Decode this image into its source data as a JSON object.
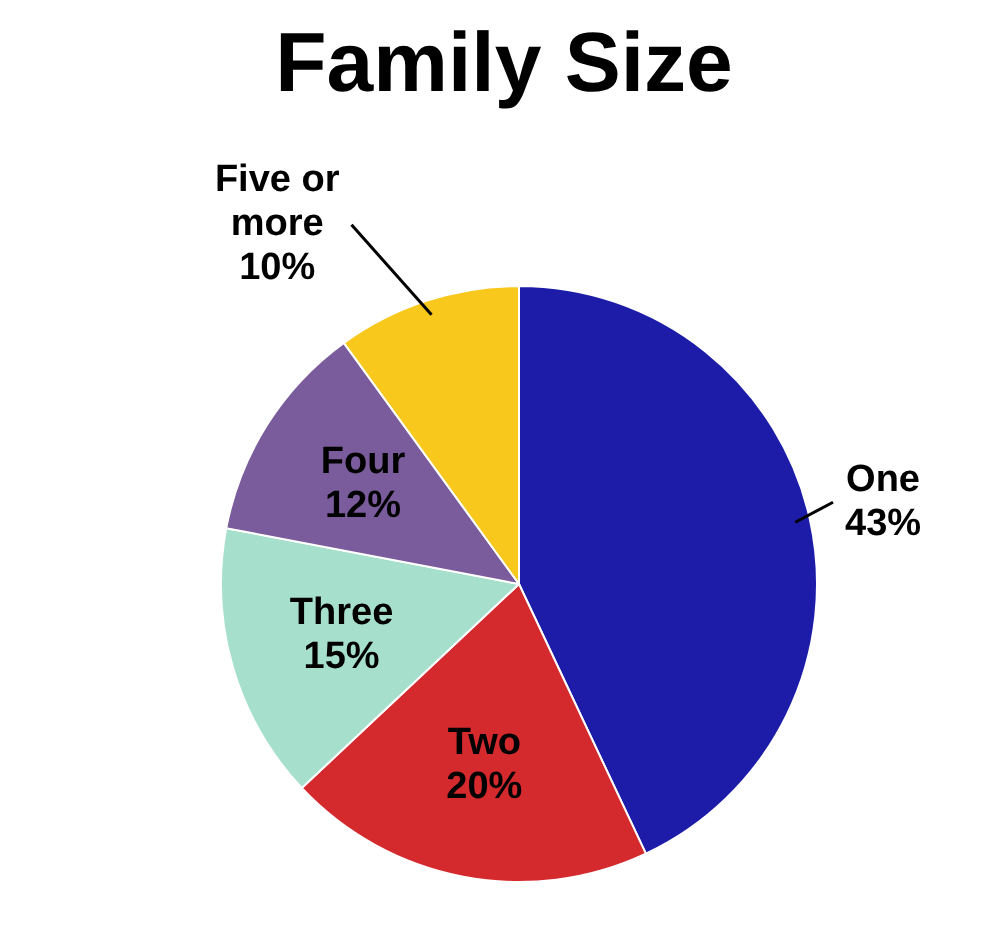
{
  "chart_data": {
    "type": "pie",
    "title": "Family Size",
    "categories": [
      "One",
      "Two",
      "Three",
      "Four",
      "Five or more"
    ],
    "values": [
      43,
      20,
      15,
      12,
      10
    ],
    "colors": [
      "#1c1ca8",
      "#d42a2e",
      "#a6e0cc",
      "#7a5c9c",
      "#f8c81c"
    ],
    "value_labels": [
      "43%",
      "20%",
      "15%",
      "12%",
      "10%"
    ],
    "legend": false
  }
}
